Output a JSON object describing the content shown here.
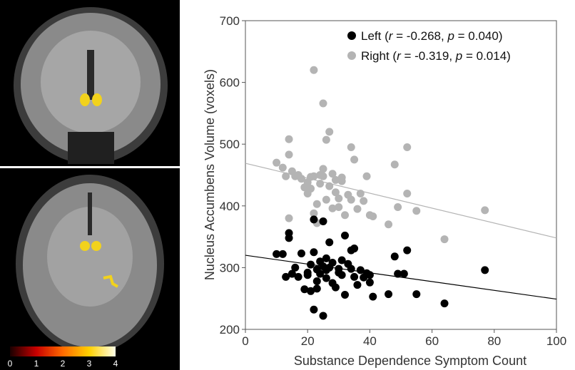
{
  "colorbar": {
    "labels": [
      "0",
      "1",
      "2",
      "3",
      "4"
    ],
    "colors": [
      "#1a0000",
      "#c80000",
      "#ff6a00",
      "#ffd000",
      "#ffffe8"
    ]
  },
  "colors": {
    "left": "#000000",
    "right": "#b4b4b4",
    "roi": "#f2d21c"
  },
  "chart_data": {
    "type": "scatter",
    "xlabel": "Substance Dependence Symptom Count",
    "ylabel": "Nucleus Accumbens Volume (voxels)",
    "xlim": [
      0,
      100
    ],
    "ylim": [
      200,
      700
    ],
    "xticks": [
      "0",
      "20",
      "40",
      "60",
      "80",
      "100"
    ],
    "yticks": [
      "200",
      "300",
      "400",
      "500",
      "600",
      "700"
    ],
    "grid": false,
    "legend_position": "top-right",
    "series": [
      {
        "name": "Left",
        "legend_label": "Left (r = -0.268, p = 0.040)",
        "legend_parts": [
          "Left (",
          "r",
          " = -0.268, ",
          "p",
          " = 0.040)"
        ],
        "color": "#000000",
        "points": [
          [
            10,
            322
          ],
          [
            12,
            322
          ],
          [
            13,
            285
          ],
          [
            14,
            356
          ],
          [
            14,
            348
          ],
          [
            15,
            290
          ],
          [
            16,
            300
          ],
          [
            17,
            285
          ],
          [
            18,
            323
          ],
          [
            19,
            265
          ],
          [
            20,
            292
          ],
          [
            20,
            288
          ],
          [
            21,
            305
          ],
          [
            21,
            262
          ],
          [
            22,
            378
          ],
          [
            22,
            325
          ],
          [
            22,
            232
          ],
          [
            23,
            297
          ],
          [
            23,
            278
          ],
          [
            23,
            266
          ],
          [
            24,
            310
          ],
          [
            24,
            290
          ],
          [
            25,
            375
          ],
          [
            25,
            302
          ],
          [
            25,
            222
          ],
          [
            26,
            315
          ],
          [
            26,
            296
          ],
          [
            26,
            283
          ],
          [
            27,
            341
          ],
          [
            27,
            300
          ],
          [
            28,
            308
          ],
          [
            28,
            275
          ],
          [
            29,
            268
          ],
          [
            30,
            298
          ],
          [
            30,
            292
          ],
          [
            31,
            312
          ],
          [
            31,
            288
          ],
          [
            32,
            352
          ],
          [
            32,
            256
          ],
          [
            33,
            306
          ],
          [
            34,
            328
          ],
          [
            34,
            298
          ],
          [
            35,
            331
          ],
          [
            35,
            285
          ],
          [
            36,
            272
          ],
          [
            37,
            296
          ],
          [
            38,
            284
          ],
          [
            39,
            291
          ],
          [
            40,
            288
          ],
          [
            40,
            276
          ],
          [
            41,
            253
          ],
          [
            46,
            257
          ],
          [
            48,
            318
          ],
          [
            49,
            290
          ],
          [
            51,
            290
          ],
          [
            52,
            328
          ],
          [
            55,
            257
          ],
          [
            64,
            242
          ],
          [
            77,
            296
          ]
        ],
        "trend": [
          [
            0,
            320
          ],
          [
            100,
            249
          ]
        ]
      },
      {
        "name": "Right",
        "legend_label": "Right (r = -0.319, p = 0.014)",
        "legend_parts": [
          "Right (",
          "r",
          " = -0.319, ",
          "p",
          " = 0.014)"
        ],
        "color": "#b4b4b4",
        "points": [
          [
            10,
            470
          ],
          [
            12,
            462
          ],
          [
            13,
            448
          ],
          [
            14,
            508
          ],
          [
            14,
            483
          ],
          [
            14,
            380
          ],
          [
            15,
            456
          ],
          [
            16,
            448
          ],
          [
            17,
            450
          ],
          [
            18,
            444
          ],
          [
            19,
            430
          ],
          [
            20,
            420
          ],
          [
            20,
            438
          ],
          [
            21,
            447
          ],
          [
            21,
            428
          ],
          [
            22,
            620
          ],
          [
            22,
            448
          ],
          [
            22,
            388
          ],
          [
            23,
            372
          ],
          [
            23,
            403
          ],
          [
            24,
            436
          ],
          [
            24,
            450
          ],
          [
            25,
            566
          ],
          [
            25,
            460
          ],
          [
            25,
            448
          ],
          [
            26,
            410
          ],
          [
            26,
            507
          ],
          [
            27,
            520
          ],
          [
            27,
            432
          ],
          [
            28,
            452
          ],
          [
            28,
            396
          ],
          [
            29,
            442
          ],
          [
            29,
            422
          ],
          [
            30,
            412
          ],
          [
            30,
            398
          ],
          [
            31,
            440
          ],
          [
            31,
            446
          ],
          [
            32,
            385
          ],
          [
            33,
            418
          ],
          [
            34,
            495
          ],
          [
            34,
            410
          ],
          [
            35,
            475
          ],
          [
            36,
            395
          ],
          [
            37,
            420
          ],
          [
            38,
            408
          ],
          [
            39,
            448
          ],
          [
            40,
            385
          ],
          [
            41,
            383
          ],
          [
            46,
            370
          ],
          [
            48,
            467
          ],
          [
            49,
            398
          ],
          [
            52,
            495
          ],
          [
            52,
            420
          ],
          [
            55,
            392
          ],
          [
            64,
            346
          ],
          [
            77,
            393
          ]
        ],
        "trend": [
          [
            0,
            469
          ],
          [
            100,
            348
          ]
        ]
      }
    ]
  }
}
